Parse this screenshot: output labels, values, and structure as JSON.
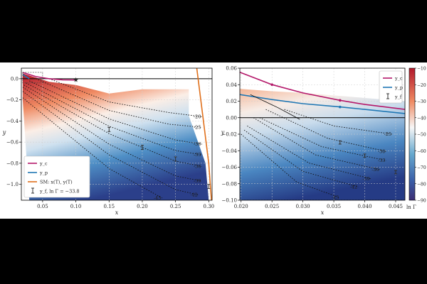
{
  "chart_data": [
    {
      "type": "heatmap",
      "xlabel": "x",
      "ylabel": "y",
      "xlim": [
        0.018,
        0.305
      ],
      "ylim": [
        -1.15,
        0.1
      ],
      "x_ticks": [
        0.05,
        0.1,
        0.15,
        0.2,
        0.25,
        0.3
      ],
      "x_tick_labels": [
        "0.05",
        "0.10",
        "0.15",
        "0.20",
        "0.25",
        "0.30"
      ],
      "y_ticks": [
        0.0,
        -0.2,
        -0.4,
        -0.6,
        -0.8,
        -1.0
      ],
      "y_tick_labels": [
        "0.0",
        "−0.2",
        "−0.4",
        "−0.6",
        "−0.8",
        "−1.0"
      ],
      "grid": true,
      "legend_position": "bottom-left",
      "legend": [
        {
          "label": "y_c",
          "color": "#b4186a"
        },
        {
          "label": "y_p",
          "color": "#1f77b4"
        },
        {
          "label": "SM: x(T), y(T)",
          "color": "#e0701c"
        },
        {
          "label": "y_f, ln Γ = −33.8",
          "color": "#333333"
        }
      ],
      "region": [
        [
          0.02,
          0.05
        ],
        [
          0.06,
          -0.03
        ],
        [
          0.1,
          -0.06
        ],
        [
          0.15,
          -0.14
        ],
        [
          0.2,
          -0.1
        ],
        [
          0.27,
          -0.1
        ],
        [
          0.27,
          -0.35
        ],
        [
          0.295,
          -0.8
        ],
        [
          0.3,
          -1.15
        ],
        [
          0.03,
          -1.15
        ],
        [
          0.02,
          -0.2
        ]
      ],
      "series": [
        {
          "name": "y_c",
          "color": "#b4186a",
          "x": [
            0.02,
            0.04,
            0.06,
            0.08,
            0.1
          ],
          "y": [
            0.06,
            0.02,
            0.0,
            -0.01,
            -0.012
          ]
        },
        {
          "name": "y_p",
          "color": "#1f77b4",
          "x": [
            0.02,
            0.025,
            0.03
          ],
          "y": [
            0.04,
            0.02,
            0.0
          ]
        },
        {
          "name": "SM: x(T), y(T)",
          "color": "#e0701c",
          "x": [
            0.282,
            0.29,
            0.3,
            0.304
          ],
          "y": [
            0.1,
            -0.3,
            -0.8,
            -1.15
          ]
        },
        {
          "name": "y_f",
          "color": "#333333",
          "x": [
            0.15,
            0.2,
            0.25,
            0.3
          ],
          "y": [
            -0.48,
            -0.65,
            -0.76,
            -1.02
          ],
          "err": [
            0.02,
            0.02,
            0.02,
            0.02
          ]
        }
      ],
      "star": {
        "x": 0.1,
        "y": -0.01
      },
      "contours": [
        {
          "label": "-20",
          "pts": [
            [
              0.06,
              0.0
            ],
            [
              0.15,
              -0.22
            ],
            [
              0.24,
              -0.32
            ],
            [
              0.29,
              -0.36
            ]
          ]
        },
        {
          "label": "-25",
          "pts": [
            [
              0.04,
              0.0
            ],
            [
              0.15,
              -0.3
            ],
            [
              0.24,
              -0.43
            ],
            [
              0.29,
              -0.46
            ]
          ]
        },
        {
          "label": "-30",
          "pts": [
            [
              0.03,
              -0.02
            ],
            [
              0.15,
              -0.38
            ],
            [
              0.25,
              -0.58
            ],
            [
              0.29,
              -0.62
            ]
          ]
        },
        {
          "label": "-33",
          "pts": [
            [
              0.025,
              -0.04
            ],
            [
              0.15,
              -0.45
            ],
            [
              0.25,
              -0.68
            ],
            [
              0.29,
              -0.72
            ]
          ]
        },
        {
          "label": "-36",
          "pts": [
            [
              0.022,
              -0.06
            ],
            [
              0.15,
              -0.52
            ],
            [
              0.25,
              -0.78
            ],
            [
              0.29,
              -0.83
            ]
          ]
        },
        {
          "label": "-39",
          "pts": [
            [
              0.02,
              -0.08
            ],
            [
              0.15,
              -0.62
            ],
            [
              0.25,
              -0.92
            ],
            [
              0.29,
              -0.97
            ]
          ]
        },
        {
          "label": "-42",
          "pts": [
            [
              0.02,
              -0.12
            ],
            [
              0.15,
              -0.72
            ],
            [
              0.25,
              -1.05
            ],
            [
              0.285,
              -1.1
            ]
          ]
        },
        {
          "label": "-45",
          "pts": [
            [
              0.02,
              -0.18
            ],
            [
              0.15,
              -0.85
            ],
            [
              0.23,
              -1.13
            ]
          ]
        }
      ]
    },
    {
      "type": "heatmap",
      "xlabel": "x",
      "ylabel": "y",
      "xlim": [
        0.0198,
        0.0465
      ],
      "ylim": [
        -0.1,
        0.06
      ],
      "x_ticks": [
        0.02,
        0.025,
        0.03,
        0.035,
        0.04,
        0.045
      ],
      "x_tick_labels": [
        "0.020",
        "0.025",
        "0.030",
        "0.035",
        "0.040",
        "0.045"
      ],
      "y_ticks": [
        0.06,
        0.04,
        0.02,
        0.0,
        -0.02,
        -0.04,
        -0.06,
        -0.08,
        -0.1
      ],
      "y_tick_labels": [
        "0.06",
        "0.04",
        "0.02",
        "0.00",
        "−0.02",
        "−0.04",
        "−0.06",
        "−0.08",
        "−0.10"
      ],
      "grid": true,
      "legend_position": "top-right",
      "legend": [
        {
          "label": "y_c",
          "color": "#b4186a"
        },
        {
          "label": "y_p",
          "color": "#1f77b4"
        },
        {
          "label": "y_f",
          "color": "#333333"
        }
      ],
      "region": [
        [
          0.0198,
          0.035
        ],
        [
          0.025,
          0.032
        ],
        [
          0.03,
          0.03
        ],
        [
          0.0465,
          0.02
        ],
        [
          0.0465,
          -0.1
        ],
        [
          0.0198,
          -0.1
        ]
      ],
      "series": [
        {
          "name": "y_c",
          "color": "#b4186a",
          "x": [
            0.0198,
            0.025,
            0.03,
            0.036,
            0.04,
            0.0465
          ],
          "y": [
            0.055,
            0.04,
            0.03,
            0.021,
            0.016,
            0.01
          ]
        },
        {
          "name": "y_p",
          "color": "#1f77b4",
          "x": [
            0.0198,
            0.025,
            0.03,
            0.036,
            0.04,
            0.0465
          ],
          "y": [
            0.028,
            0.022,
            0.017,
            0.013,
            0.01,
            0.005
          ]
        },
        {
          "name": "y_f",
          "color": "#333333",
          "x": [
            0.036,
            0.04,
            0.045
          ],
          "y": [
            -0.03,
            -0.046,
            -0.066
          ],
          "err": [
            0.002,
            0.002,
            0.002
          ]
        }
      ],
      "contours": [
        {
          "label": "-25",
          "pts": [
            [
              0.027,
              0.01
            ],
            [
              0.035,
              -0.01
            ],
            [
              0.0445,
              -0.02
            ]
          ]
        },
        {
          "label": "-30",
          "pts": [
            [
              0.024,
              0.01
            ],
            [
              0.034,
              -0.025
            ],
            [
              0.0435,
              -0.041
            ]
          ]
        },
        {
          "label": "-33",
          "pts": [
            [
              0.023,
              0.0
            ],
            [
              0.033,
              -0.035
            ],
            [
              0.0435,
              -0.052
            ]
          ]
        },
        {
          "label": "-36",
          "pts": [
            [
              0.022,
              0.0
            ],
            [
              0.032,
              -0.045
            ],
            [
              0.0425,
              -0.063
            ]
          ]
        },
        {
          "label": "-39",
          "pts": [
            [
              0.021,
              -0.01
            ],
            [
              0.031,
              -0.055
            ],
            [
              0.041,
              -0.074
            ]
          ]
        },
        {
          "label": "-42",
          "pts": [
            [
              0.0205,
              -0.015
            ],
            [
              0.03,
              -0.065
            ],
            [
              0.039,
              -0.084
            ]
          ]
        },
        {
          "label": "-45",
          "pts": [
            [
              0.02,
              -0.02
            ],
            [
              0.029,
              -0.078
            ],
            [
              0.036,
              -0.097
            ]
          ]
        }
      ],
      "colorbar": {
        "label": "ln Γ",
        "range": [
          -90,
          -10
        ],
        "ticks": [
          -10,
          -20,
          -30,
          -40,
          -50,
          -60,
          -70,
          -80,
          -90
        ],
        "tick_labels": [
          "−10",
          "−20",
          "−30",
          "−40",
          "−50",
          "−60",
          "−70",
          "−80",
          "−90"
        ]
      }
    }
  ]
}
